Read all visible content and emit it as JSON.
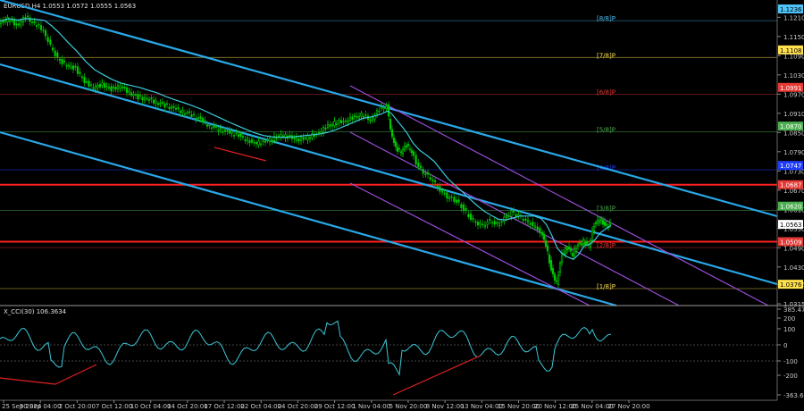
{
  "main": {
    "title": "EURUSD,H4  1.0553 1.0572 1.0555 1.0563",
    "price_ticks": [
      "1.1210",
      "1.1150",
      "1.1090",
      "1.1030",
      "1.0970",
      "1.0910",
      "1.0850",
      "1.0790",
      "1.0730",
      "1.0670",
      "1.0610",
      "1.0550",
      "1.0490",
      "1.0430",
      "1.0376",
      "1.0315"
    ],
    "level_tags": [
      {
        "label": "1.1236",
        "price": 1.1236,
        "color": "#4fc3f7",
        "text_color": "#000000"
      },
      {
        "label": "1.1108",
        "price": 1.1108,
        "color": "#ffe14d",
        "text_color": "#000000"
      },
      {
        "label": "1.0991",
        "price": 1.0991,
        "color": "#e53935",
        "text_color": "#ffffff"
      },
      {
        "label": "1.0870",
        "price": 1.087,
        "color": "#4caf50",
        "text_color": "#ffffff"
      },
      {
        "label": "1.0747",
        "price": 1.0747,
        "color": "#1e3cff",
        "text_color": "#ffffff"
      },
      {
        "label": "1.0687",
        "price": 1.0687,
        "color": "#e53935",
        "text_color": "#ffffff"
      },
      {
        "label": "1.0620",
        "price": 1.062,
        "color": "#4caf50",
        "text_color": "#ffffff"
      },
      {
        "label": "1.0563",
        "price": 1.0563,
        "color": "#ffffff",
        "text_color": "#000000"
      },
      {
        "label": "1.0509",
        "price": 1.0509,
        "color": "#e53935",
        "text_color": "#ffffff"
      },
      {
        "label": "1.0376",
        "price": 1.0376,
        "color": "#ffe14d",
        "text_color": "#000000"
      }
    ],
    "murrey_labels": [
      {
        "label": "[8/8]P",
        "price": 1.1205,
        "color": "#4fc3f7"
      },
      {
        "label": "[7/8]P",
        "price": 1.109,
        "color": "#ffe14d"
      },
      {
        "label": "[6/8]P",
        "price": 1.0975,
        "color": "#e53935"
      },
      {
        "label": "[5/8]P",
        "price": 1.0858,
        "color": "#4caf50"
      },
      {
        "label": "[4/8]P",
        "price": 1.0739,
        "color": "#1e3cff"
      },
      {
        "label": "[3/8]P",
        "price": 1.0612,
        "color": "#4caf50"
      },
      {
        "label": "[2/8]P",
        "price": 1.0496,
        "color": "#e53935"
      },
      {
        "label": "[1/8]P",
        "price": 1.0368,
        "color": "#ffe14d"
      }
    ],
    "horizontal_levels": [
      {
        "price": 1.0687,
        "color": "#ff2020"
      },
      {
        "price": 1.0509,
        "color": "#ff2020"
      }
    ],
    "colors": {
      "bull": "#00e000",
      "bear": "#00c800",
      "ma": "#3cc8d8",
      "channel": "#29a8e8",
      "purple": "#9a4dd8",
      "trend_red": "#e02020"
    }
  },
  "indicator": {
    "title": "X_CCI(30) 106.3634",
    "ticks": [
      "385.4725",
      "200",
      "100",
      "0",
      "-100",
      "-200",
      "-363.641"
    ]
  },
  "time_axis": {
    "labels": [
      "25 Sep 2024",
      "30 Sep 04:00",
      "2 Oct 20:00",
      "7 Oct 12:00",
      "10 Oct 04:00",
      "14 Oct 20:00",
      "17 Oct 12:00",
      "22 Oct 04:00",
      "24 Oct 20:00",
      "29 Oct 12:00",
      "1 Nov 04:00",
      "5 Nov 20:00",
      "8 Nov 12:00",
      "13 Nov 04:00",
      "15 Nov 20:00",
      "20 Nov 12:00",
      "25 Nov 04:00",
      "27 Nov 20:00"
    ]
  }
}
